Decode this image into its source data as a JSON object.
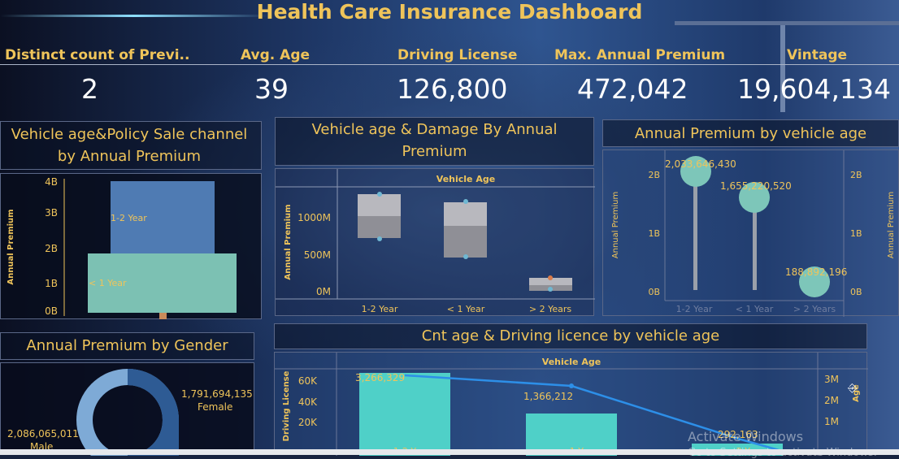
{
  "title": "Health Care Insurance Dashboard",
  "kpis": [
    {
      "label": "Distinct count of Previ..",
      "value": "2"
    },
    {
      "label": "Avg. Age",
      "value": "39"
    },
    {
      "label": "Driving License",
      "value": "126,800"
    },
    {
      "label": "Max. Annual Premium",
      "value": "472,042"
    },
    {
      "label": "Vintage",
      "value": "19,604,134"
    }
  ],
  "panel1": {
    "title_l1": "Vehicle age&Policy Sale channel",
    "title_l2": "by Annual Premium",
    "ylabel": "Annual Premium",
    "yticks": [
      "4B",
      "3B",
      "2B",
      "1B",
      "0B"
    ],
    "labels": [
      "1-2 Year",
      "< 1 Year"
    ]
  },
  "panel2": {
    "title_l1": "Vehicle age & Damage By Annual",
    "title_l2": "Premium",
    "header": "Vehicle Age",
    "ylabel": "Annual Premium",
    "yticks": [
      "1000M",
      "500M",
      "0M"
    ],
    "xticks": [
      "1-2 Year",
      "< 1 Year",
      "> 2 Years"
    ]
  },
  "panel3": {
    "title": "Annual Premium by vehicle age",
    "ylabel": "Annual Premium",
    "yticks": [
      "2B",
      "1B",
      "0B"
    ],
    "xticks": [
      "1-2 Year",
      "< 1 Year",
      "> 2 Years"
    ],
    "labels": [
      "2,033,646,430",
      "1,655,220,520",
      "188,892,196"
    ]
  },
  "panel4": {
    "title": "Annual Premium by Gender",
    "female_value": "1,791,694,135",
    "female_label": "Female",
    "male_value": "2,086,065,011",
    "male_label": "Male"
  },
  "panel5": {
    "title": "Cnt age & Driving licence by vehicle age",
    "header": "Vehicle Age",
    "ylabel": "Driving License",
    "ylabel_right": "Age",
    "yticks": [
      "60K",
      "40K",
      "20K"
    ],
    "yticks_right": [
      "3M",
      "2M",
      "1M"
    ],
    "labels": [
      "3,266,329",
      "1,366,212",
      "292,163"
    ],
    "xticks": [
      "1-2 Y",
      "< 1 Y",
      "> 2 Y"
    ]
  },
  "windows": {
    "line1": "Activate Windows",
    "line2": "Go to Settings to activate Windows."
  },
  "chart_data": [
    {
      "type": "bar",
      "title": "Vehicle age&Policy Sale channel by Annual Premium",
      "ylabel": "Annual Premium",
      "categories": [
        "1-2 Year",
        "< 1 Year"
      ],
      "values": [
        2.33,
        1.83
      ],
      "ylim": [
        0,
        4
      ]
    },
    {
      "type": "bar",
      "title": "Vehicle age & Damage By Annual Premium",
      "ylabel": "Annual Premium",
      "categories": [
        "1-2 Year",
        "< 1 Year",
        "> 2 Years"
      ],
      "series": [
        {
          "values": [
            1320,
            1230,
            120
          ]
        },
        {
          "values": [
            900,
            850,
            50
          ]
        }
      ],
      "ylim": [
        0,
        1400
      ]
    },
    {
      "type": "scatter",
      "title": "Annual Premium by vehicle age",
      "ylabel": "Annual Premium",
      "categories": [
        "1-2 Year",
        "< 1 Year",
        "> 2 Years"
      ],
      "values": [
        2033646430,
        1655220520,
        188892196
      ],
      "ylim": [
        0,
        2500000000
      ]
    },
    {
      "type": "pie",
      "title": "Annual Premium by Gender",
      "categories": [
        "Female",
        "Male"
      ],
      "values": [
        1791694135,
        2086065011
      ]
    },
    {
      "type": "bar",
      "title": "Cnt age & Driving licence by vehicle age",
      "ylabel": "Driving License",
      "categories": [
        "1-2 Y",
        "< 1 Y",
        "> 2 Y"
      ],
      "values": [
        69000,
        26000,
        1500
      ],
      "line_values": [
        3266329,
        1366212,
        292163
      ],
      "ylim": [
        0,
        80000
      ]
    }
  ]
}
